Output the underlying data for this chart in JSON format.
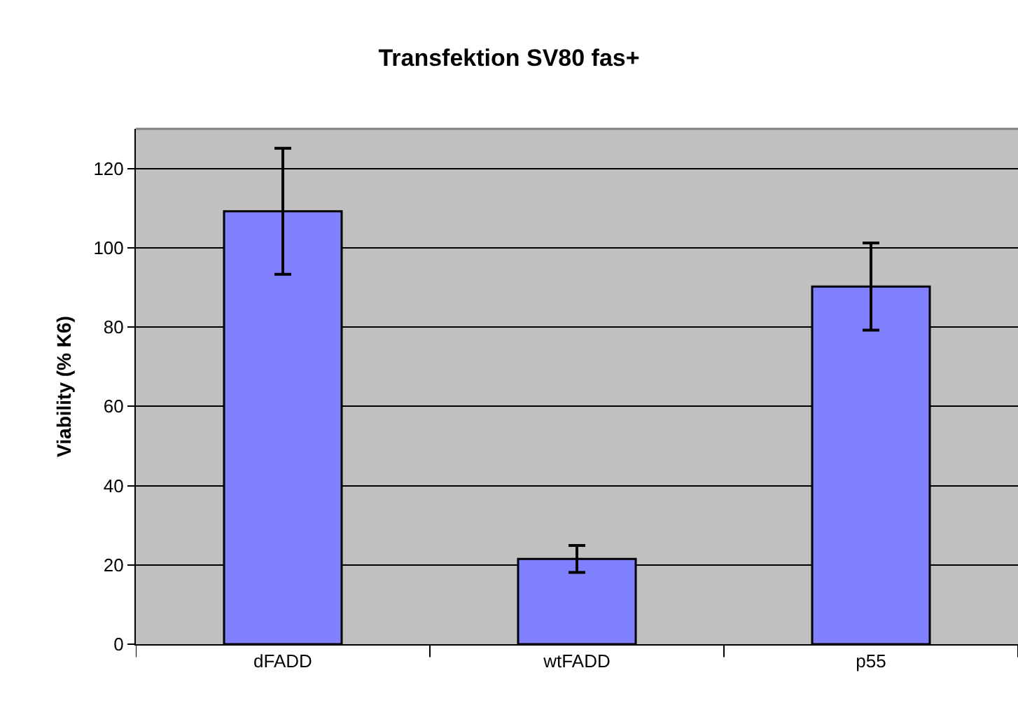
{
  "chart_data": {
    "type": "bar",
    "title": "Transfektion SV80 fas+",
    "ylabel": "Viability (% K6)",
    "categories": [
      "dFADD",
      "wtFADD",
      "p55"
    ],
    "values": [
      109.2,
      21.5,
      90.2
    ],
    "errors": [
      15.9,
      3.4,
      11
    ],
    "color": "#8080ff",
    "ylim": [
      0,
      130
    ],
    "yticks": [
      0,
      20,
      40,
      60,
      80,
      100,
      120
    ],
    "grid": "y",
    "legend": false
  }
}
